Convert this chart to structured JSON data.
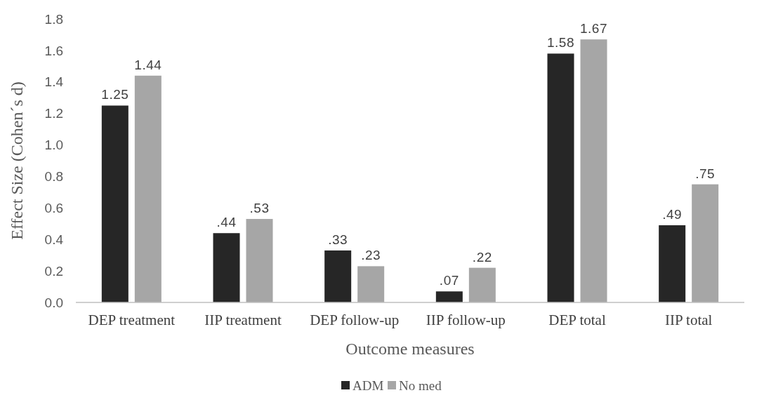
{
  "chart_data": {
    "type": "bar",
    "xlabel": "Outcome measures",
    "ylabel": "Effect Size (Cohen´s d)",
    "categories": [
      "DEP treatment",
      "IIP treatment",
      "DEP follow-up",
      "IIP follow-up",
      "DEP total",
      "IIP total"
    ],
    "series": [
      {
        "name": "ADM",
        "color": "#262626",
        "values": [
          1.25,
          0.44,
          0.33,
          0.07,
          1.58,
          0.49
        ],
        "value_labels": [
          "1.25",
          ".44",
          ".33",
          ".07",
          "1.58",
          ".49"
        ]
      },
      {
        "name": "No med",
        "color": "#a6a6a6",
        "values": [
          1.44,
          0.53,
          0.23,
          0.22,
          1.67,
          0.75
        ],
        "value_labels": [
          "1.44",
          ".53",
          ".23",
          ".22",
          "1.67",
          ".75"
        ]
      }
    ],
    "ylim": [
      0,
      1.8
    ],
    "yticks": [
      {
        "value": 0,
        "label": "0.0"
      },
      {
        "value": 0.2,
        "label": "0.2"
      },
      {
        "value": 0.4,
        "label": "0.4"
      },
      {
        "value": 0.6,
        "label": "0.6"
      },
      {
        "value": 0.8,
        "label": "0.8"
      },
      {
        "value": 1,
        "label": "1.0"
      },
      {
        "value": 1.2,
        "label": "1.2"
      },
      {
        "value": 1.4,
        "label": "1.4"
      },
      {
        "value": 1.6,
        "label": "1.6"
      },
      {
        "value": 1.8,
        "label": "1.8"
      }
    ],
    "grid": false,
    "legend": "bottom"
  }
}
